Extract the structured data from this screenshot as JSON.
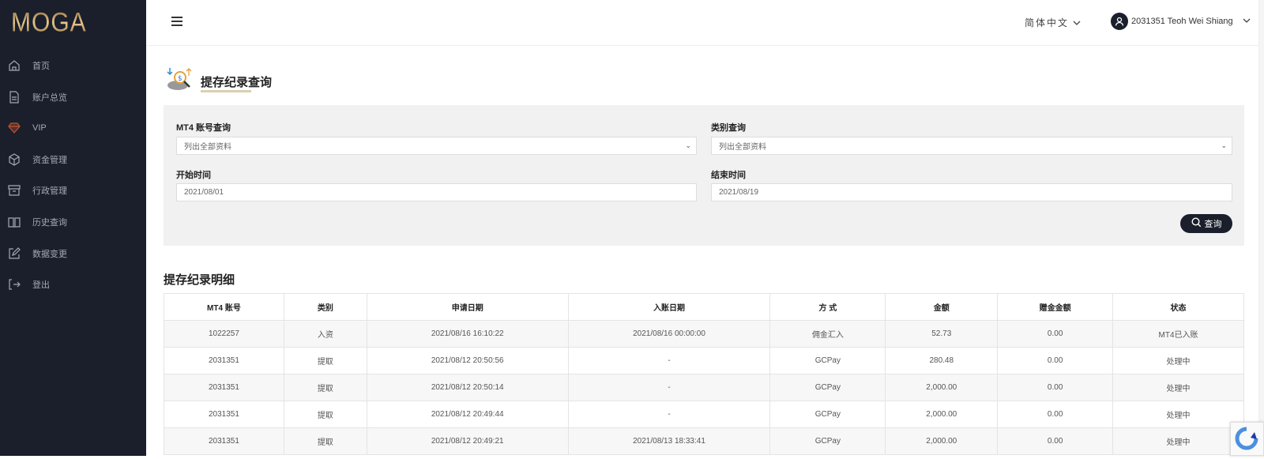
{
  "brand": {
    "logo": "MOGA"
  },
  "sidebar": {
    "items": [
      {
        "label": "首页",
        "icon": "home-icon"
      },
      {
        "label": "账户总览",
        "icon": "document-icon"
      },
      {
        "label": "VIP",
        "icon": "diamond-icon"
      },
      {
        "label": "资金管理",
        "icon": "box-icon"
      },
      {
        "label": "行政管理",
        "icon": "archive-icon"
      },
      {
        "label": "历史查询",
        "icon": "book-icon"
      },
      {
        "label": "数据变更",
        "icon": "edit-icon"
      },
      {
        "label": "登出",
        "icon": "logout-icon"
      }
    ]
  },
  "header": {
    "language": "简体中文",
    "user": "2031351 Teoh Wei Shiang"
  },
  "page": {
    "title": "提存纪录查询"
  },
  "filters": {
    "account_label": "MT4 账号查询",
    "account_value": "列出全部资料",
    "type_label": "类别查询",
    "type_value": "列出全部资料",
    "start_label": "开始时间",
    "start_value": "2021/08/01",
    "end_label": "结束时间",
    "end_value": "2021/08/19",
    "search_label": "查询"
  },
  "records": {
    "title": "提存纪录明细",
    "columns": [
      "MT4 账号",
      "类别",
      "申请日期",
      "入账日期",
      "方 式",
      "金额",
      "赠金金额",
      "状态"
    ],
    "rows": [
      [
        "1022257",
        "入资",
        "2021/08/16 16:10:22",
        "2021/08/16 00:00:00",
        "佣金汇入",
        "52.73",
        "0.00",
        "MT4已入账"
      ],
      [
        "2031351",
        "提取",
        "2021/08/12 20:50:56",
        "-",
        "GCPay",
        "280.48",
        "0.00",
        "处理中"
      ],
      [
        "2031351",
        "提取",
        "2021/08/12 20:50:14",
        "-",
        "GCPay",
        "2,000.00",
        "0.00",
        "处理中"
      ],
      [
        "2031351",
        "提取",
        "2021/08/12 20:49:44",
        "-",
        "GCPay",
        "2,000.00",
        "0.00",
        "处理中"
      ],
      [
        "2031351",
        "提取",
        "2021/08/12 20:49:21",
        "2021/08/13 18:33:41",
        "GCPay",
        "2,000.00",
        "0.00",
        "处理中"
      ]
    ]
  },
  "colors": {
    "sidebar": "#1b1f2c",
    "accent": "#c9a56a",
    "vip": "#c0552e"
  }
}
